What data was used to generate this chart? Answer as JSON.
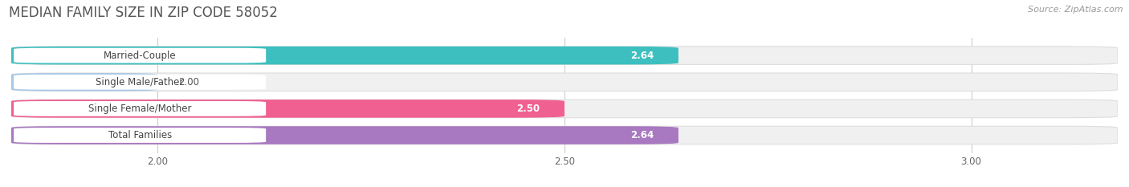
{
  "title": "MEDIAN FAMILY SIZE IN ZIP CODE 58052",
  "source": "Source: ZipAtlas.com",
  "categories": [
    "Married-Couple",
    "Single Male/Father",
    "Single Female/Mother",
    "Total Families"
  ],
  "values": [
    2.64,
    2.0,
    2.5,
    2.64
  ],
  "bar_colors": [
    "#3dbfbf",
    "#a8c8e8",
    "#f06090",
    "#a878c0"
  ],
  "bar_bg_color": "#e8e8e8",
  "value_text_colors": [
    "white",
    "#666666",
    "#666666",
    "white"
  ],
  "xlim": [
    1.82,
    3.18
  ],
  "xticks": [
    2.0,
    2.5,
    3.0
  ],
  "xticklabels": [
    "2.00",
    "2.50",
    "3.00"
  ],
  "title_fontsize": 12,
  "source_fontsize": 8,
  "label_fontsize": 8.5,
  "value_fontsize": 8.5,
  "tick_fontsize": 8.5,
  "bar_height": 0.68,
  "background_color": "#ffffff"
}
